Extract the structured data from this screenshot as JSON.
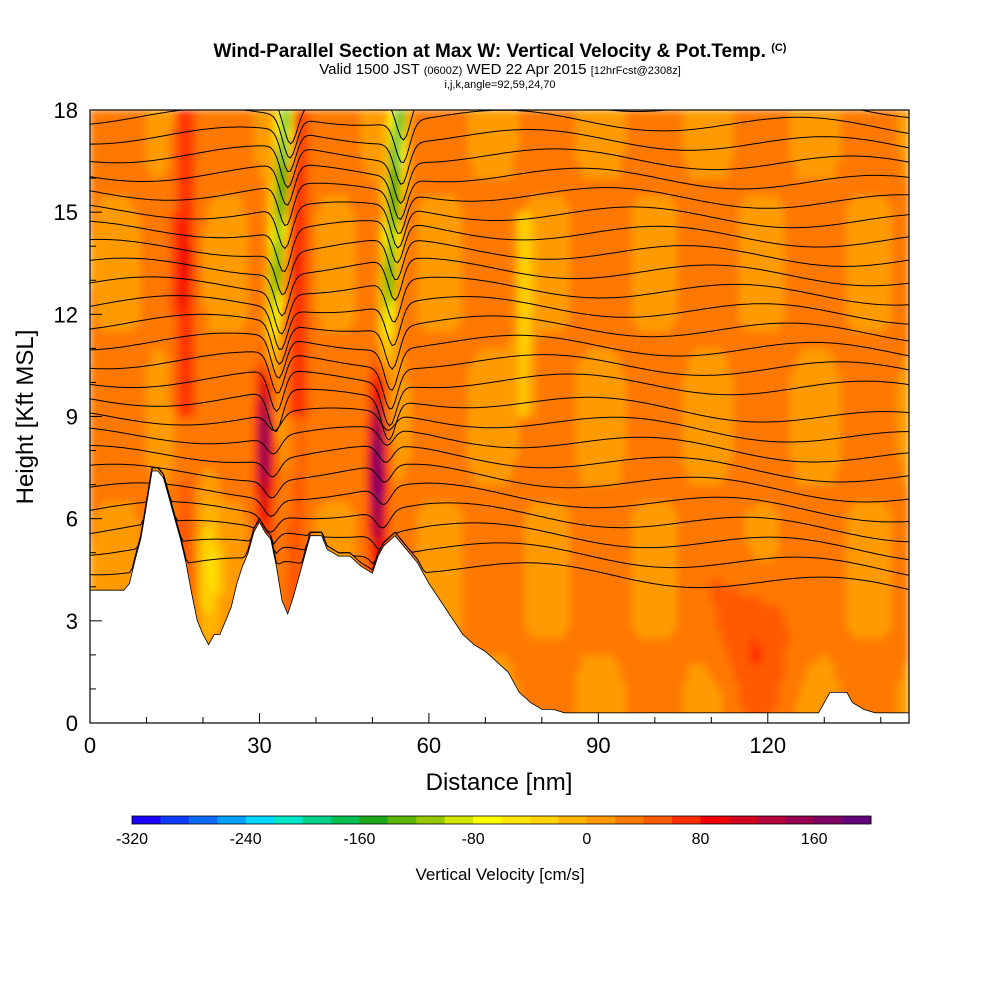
{
  "header": {
    "title": "Wind-Parallel Section at Max W: Vertical Velocity & Pot.Temp.",
    "title_mark": "(C)",
    "valid_pre": "Valid 1500 JST",
    "valid_utc": "(0600Z)",
    "valid_post": "WED 22 Apr 2015",
    "forecast": "[12hrFcst@2308z]",
    "indices": "i,j,k,angle=92,59,24,70"
  },
  "chart_data": {
    "type": "heatmap",
    "xlabel": "Distance [nm]",
    "ylabel": "Height [Kft MSL]",
    "xlim": [
      0,
      145
    ],
    "ylim": [
      0,
      18
    ],
    "x_ticks": [
      "0",
      "30",
      "60",
      "90",
      "120"
    ],
    "x_tick_values": [
      0,
      30,
      60,
      90,
      120
    ],
    "y_ticks": [
      "0",
      "3",
      "6",
      "9",
      "12",
      "15",
      "18"
    ],
    "y_tick_values": [
      0,
      3,
      6,
      9,
      12,
      15,
      18
    ],
    "terrain": [
      [
        0,
        3.9
      ],
      [
        6,
        3.9
      ],
      [
        7,
        4.1
      ],
      [
        8,
        4.8
      ],
      [
        9,
        5.4
      ],
      [
        9.5,
        5.9
      ],
      [
        10,
        6.4
      ],
      [
        11,
        7.4
      ],
      [
        12,
        7.4
      ],
      [
        13,
        7.2
      ],
      [
        14,
        6.6
      ],
      [
        15,
        6.0
      ],
      [
        16,
        5.4
      ],
      [
        17,
        4.7
      ],
      [
        18,
        3.8
      ],
      [
        19,
        3.0
      ],
      [
        20,
        2.6
      ],
      [
        21,
        2.3
      ],
      [
        22,
        2.6
      ],
      [
        23,
        2.6
      ],
      [
        24,
        3.0
      ],
      [
        25,
        3.4
      ],
      [
        26,
        4.1
      ],
      [
        27,
        4.6
      ],
      [
        28,
        5.0
      ],
      [
        29,
        5.6
      ],
      [
        30,
        5.9
      ],
      [
        31,
        5.6
      ],
      [
        32,
        5.4
      ],
      [
        33,
        4.6
      ],
      [
        34,
        3.6
      ],
      [
        35,
        3.2
      ],
      [
        36,
        3.7
      ],
      [
        37,
        4.3
      ],
      [
        38,
        4.9
      ],
      [
        39,
        5.5
      ],
      [
        41,
        5.5
      ],
      [
        42,
        5.1
      ],
      [
        44,
        4.9
      ],
      [
        46,
        4.9
      ],
      [
        48,
        4.6
      ],
      [
        50,
        4.4
      ],
      [
        51,
        4.9
      ],
      [
        52,
        5.2
      ],
      [
        54,
        5.5
      ],
      [
        56,
        5.1
      ],
      [
        58,
        4.7
      ],
      [
        60,
        4.1
      ],
      [
        62,
        3.6
      ],
      [
        64,
        3.1
      ],
      [
        66,
        2.6
      ],
      [
        68,
        2.3
      ],
      [
        70,
        2.1
      ],
      [
        72,
        1.8
      ],
      [
        74,
        1.5
      ],
      [
        76,
        0.9
      ],
      [
        78,
        0.6
      ],
      [
        80,
        0.4
      ],
      [
        82,
        0.4
      ],
      [
        84,
        0.3
      ],
      [
        129,
        0.3
      ],
      [
        130,
        0.6
      ],
      [
        131,
        0.9
      ],
      [
        134,
        0.9
      ],
      [
        135,
        0.6
      ],
      [
        137,
        0.4
      ],
      [
        139,
        0.3
      ],
      [
        145,
        0.3
      ]
    ],
    "updraft_cores": [
      {
        "x": 31,
        "ylow": 6.0,
        "yhigh": 10.5,
        "w": 160
      },
      {
        "x": 51,
        "ylow": 5.0,
        "yhigh": 10.2,
        "w": 180
      }
    ],
    "colorbar": {
      "label": "Vertical Velocity [cm/s]",
      "min": -320,
      "max": 200,
      "step": 20,
      "tick_labels": [
        "-320",
        "-240",
        "-160",
        "-80",
        "0",
        "80",
        "160"
      ],
      "tick_values": [
        -320,
        -240,
        -160,
        -80,
        0,
        80,
        160
      ],
      "colors": [
        "#1a00ff",
        "#0d3cff",
        "#0a6cff",
        "#00a0ff",
        "#00d6ff",
        "#00e6c8",
        "#00d28c",
        "#00be50",
        "#1ea81e",
        "#5ab400",
        "#96c800",
        "#d2e600",
        "#ffff00",
        "#ffe600",
        "#ffd200",
        "#ffb400",
        "#ff9b00",
        "#ff7800",
        "#ff5a00",
        "#ff2d00",
        "#f00000",
        "#d2001e",
        "#b4003c",
        "#960050",
        "#7d0064",
        "#64007d"
      ]
    }
  }
}
